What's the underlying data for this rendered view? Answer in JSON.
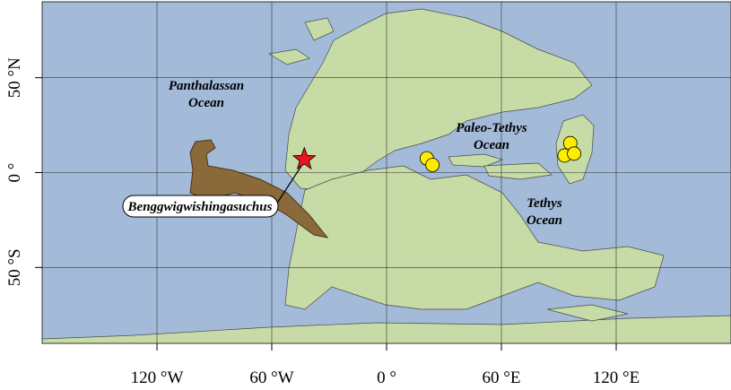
{
  "chart_data": {
    "type": "map",
    "xlim": [
      -180,
      180
    ],
    "ylim": [
      -90,
      90
    ],
    "xticks": [
      {
        "value": -120,
        "label": "120 °W"
      },
      {
        "value": -60,
        "label": "60 °W"
      },
      {
        "value": 0,
        "label": "0 °"
      },
      {
        "value": 60,
        "label": "60 °E"
      },
      {
        "value": 120,
        "label": "120 °E"
      }
    ],
    "yticks": [
      {
        "value": -50,
        "label": "50 °S"
      },
      {
        "value": 0,
        "label": "0 °"
      },
      {
        "value": 50,
        "label": "50 °N"
      }
    ],
    "grid": true,
    "series": [
      {
        "marker": "star",
        "color": "#e8151b",
        "x": [
          -43
        ],
        "y": [
          7
        ]
      },
      {
        "marker": "circle",
        "color": "#ffec00",
        "x": [
          21,
          24,
          96,
          93,
          98
        ],
        "y": [
          7.5,
          4,
          15.5,
          9,
          10
        ]
      }
    ],
    "annotations": [
      [
        "Panthalassan",
        "Ocean"
      ],
      [
        "Paleo-Tethys",
        "Ocean"
      ],
      [
        "Tethys",
        "Ocean"
      ]
    ],
    "taxon": "Benggwigwishingasuchus"
  }
}
